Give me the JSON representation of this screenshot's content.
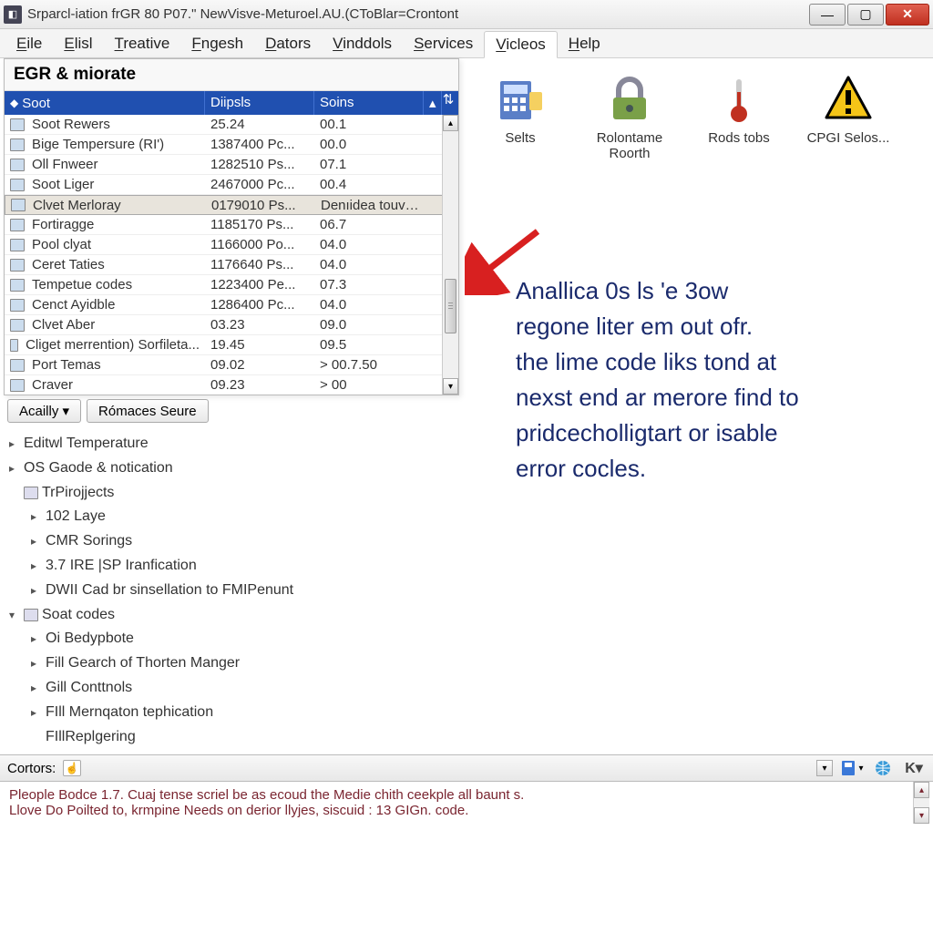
{
  "titlebar": {
    "icon_bg": "#445566",
    "text": "Srparcl-iation frGR 80 P07.\" NewVisve-Meturoel.AU.(CToBlar=Crontont"
  },
  "menubar": {
    "items": [
      {
        "label": "Eile",
        "u": "E"
      },
      {
        "label": "Elisl",
        "u": "E"
      },
      {
        "label": "Treative",
        "u": "T"
      },
      {
        "label": "Fngesh",
        "u": "F"
      },
      {
        "label": "Dators",
        "u": "D"
      },
      {
        "label": "Vinddols",
        "u": "V"
      },
      {
        "label": "Services",
        "u": "S"
      },
      {
        "label": "Vicleos",
        "u": "V",
        "active": true
      },
      {
        "label": "Help",
        "u": "H"
      }
    ]
  },
  "grid": {
    "title": "EGR & miorate",
    "header": {
      "c1": "Soot",
      "c2": "Diipsls",
      "c3": "Soins"
    },
    "header_bg": "#2050b0",
    "rows": [
      {
        "name": "Soot Rewers",
        "c2": "25.24",
        "c3": "00.1"
      },
      {
        "name": "Bige Tempersure (RI')",
        "c2": "1387400 Pc...",
        "c3": "00.0"
      },
      {
        "name": "Oll Fnweer",
        "c2": "1282510 Ps...",
        "c3": "07.1"
      },
      {
        "name": "Soot Liger",
        "c2": "2467000 Pc...",
        "c3": "00.4"
      },
      {
        "name": "Clvet Merloray",
        "c2": "0179010 Ps...",
        "c3": "Denıidea touveborcer",
        "selected": true
      },
      {
        "name": "Fortiragge",
        "c2": "1185170 Ps...",
        "c3": "06.7"
      },
      {
        "name": "Pool clyat",
        "c2": "1166000 Po...",
        "c3": "04.0"
      },
      {
        "name": "Ceret Taties",
        "c2": "1176640 Ps...",
        "c3": "04.0"
      },
      {
        "name": "Tempetue codes",
        "c2": "1223400 Pe...",
        "c3": "07.3"
      },
      {
        "name": "Cenct Ayidble",
        "c2": "1286400 Pc...",
        "c3": "04.0"
      },
      {
        "name": "Clvet Aber",
        "c2": "03.23",
        "c3": "09.0"
      },
      {
        "name": "Cliget merrention) Sorfileta...",
        "c2": "19.45",
        "c3": "09.5"
      },
      {
        "name": "Port Temas",
        "c2": "09.02",
        "c3": "> 00.7.50"
      },
      {
        "name": "Craver",
        "c2": "09.23",
        "c3": "> 00"
      }
    ]
  },
  "toolbar": {
    "buttons": [
      {
        "label": "Selts",
        "icon": "calc",
        "color": "#5b7fc7"
      },
      {
        "label": "Rolontame Roorth",
        "icon": "lock",
        "color": "#7aa048"
      },
      {
        "label": "Rods tobs",
        "icon": "thermo",
        "color": "#888888"
      },
      {
        "label": "CPGI Selos...",
        "icon": "warn",
        "color": "#f5c518"
      }
    ]
  },
  "annotation": {
    "arrow_color": "#d82020",
    "text_color": "#1a2a6c",
    "lines": [
      "Anallica 0s ls 'e 3ow",
      "regone liter em out ofr.",
      "the lime code liks tond at",
      "nexst end ar merore find to",
      "pridcecholligtart or isable",
      "error cocles."
    ]
  },
  "mid_buttons": [
    {
      "label": "Acailly ▾"
    },
    {
      "label": "Rómaces Seure"
    }
  ],
  "tree": [
    {
      "caret": "▸",
      "icon": false,
      "label": "Editwl Temperature",
      "indent": 0
    },
    {
      "caret": "▸",
      "icon": false,
      "label": "OS Gaode & notication",
      "indent": 0
    },
    {
      "caret": "",
      "icon": true,
      "label": "TrPirojjects",
      "indent": 0
    },
    {
      "caret": "▾",
      "icon": false,
      "label": "",
      "indent": 0,
      "nested": [
        {
          "caret": "▸",
          "label": "102 Laye"
        },
        {
          "caret": "▸",
          "label": "CMR Sorings"
        },
        {
          "caret": "▸",
          "label": "3.7 IRE |SP Iranfication"
        },
        {
          "caret": "▸",
          "label": "DWII Cad br sinsellation to FMIPenunt"
        }
      ]
    },
    {
      "caret": "▾",
      "icon": true,
      "label": "Soat codes",
      "indent": 0,
      "nested": [
        {
          "caret": "▸",
          "label": "Oi Bedypbote"
        },
        {
          "caret": "▸",
          "label": "Fill Gearch of Thorten Manger"
        },
        {
          "caret": "▸",
          "label": "Gill Conttnols"
        },
        {
          "caret": "▸",
          "label": "FIll Mernqaton tephication"
        },
        {
          "caret": "",
          "label": "FIllReplgering"
        }
      ]
    }
  ],
  "console": {
    "label": "Cortors:",
    "lines": [
      "Pleople Bodce 1.7. Cuaj tense scriel be as ecoud the Medie chith ceekple all baunt s.",
      "Llove Do Poilted to, krmpine Needs on derior llyjes, siscuid : 13 GIGn. code."
    ],
    "text_color": "#7a2530"
  },
  "colors": {
    "window_bg": "#ffffff",
    "titlebar_grad_top": "#f8f8f8",
    "titlebar_grad_bot": "#e8e8e8",
    "close_btn": "#c03020"
  }
}
